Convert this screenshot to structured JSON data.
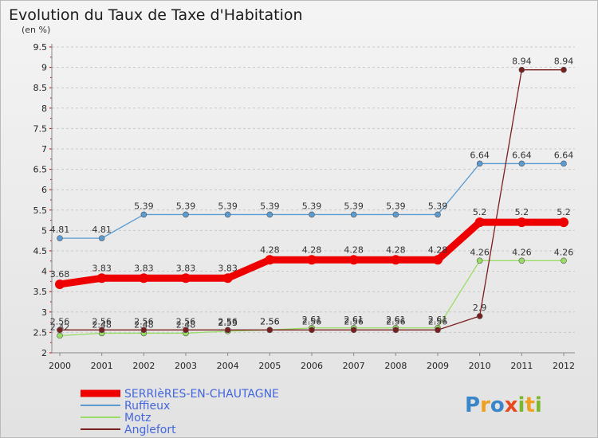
{
  "chart_data": {
    "type": "line",
    "title": "Evolution du Taux de Taxe d'Habitation",
    "subtitle": "(en %)",
    "x": [
      "2000",
      "2001",
      "2002",
      "2003",
      "2004",
      "2005",
      "2006",
      "2007",
      "2008",
      "2009",
      "2010",
      "2011",
      "2012"
    ],
    "ylim": [
      2,
      9.5
    ],
    "yticks": [
      "2",
      "2.5",
      "3",
      "3.5",
      "4",
      "4.5",
      "5",
      "5.5",
      "6",
      "6.5",
      "7",
      "7.5",
      "8",
      "8.5",
      "9",
      "9.5"
    ],
    "grid": "horizontal-dashed",
    "legend_position": "bottom-left",
    "series": [
      {
        "name": "SERRIèRES-EN-CHAUTAGNE",
        "color": "#ee0000",
        "values": [
          3.68,
          3.83,
          3.83,
          3.83,
          3.83,
          4.28,
          4.28,
          4.28,
          4.28,
          4.28,
          5.2,
          5.2,
          5.2
        ],
        "labels": [
          "3.68",
          "3.83",
          "3.83",
          "3.83",
          "3.83",
          "4.28",
          "4.28",
          "4.28",
          "4.28",
          "4.28",
          "5.2",
          "5.2",
          "5.2"
        ]
      },
      {
        "name": "Ruffieux",
        "color": "#5b9bd0",
        "values": [
          4.81,
          4.81,
          5.39,
          5.39,
          5.39,
          5.39,
          5.39,
          5.39,
          5.39,
          5.39,
          6.64,
          6.64,
          6.64
        ],
        "labels": [
          "4.81",
          "4.81",
          "5.39",
          "5.39",
          "5.39",
          "5.39",
          "5.39",
          "5.39",
          "5.39",
          "5.39",
          "6.64",
          "6.64",
          "6.64"
        ]
      },
      {
        "name": "Motz",
        "color": "#99dd66",
        "values": [
          2.42,
          2.48,
          2.48,
          2.48,
          2.53,
          2.56,
          2.61,
          2.61,
          2.61,
          2.61,
          4.26,
          4.26,
          4.26
        ],
        "labels": [
          "2.42",
          "2.48",
          "2.48",
          "2.48",
          "2.53",
          "2.56",
          "2.61",
          "2.61",
          "2.61",
          "2.61",
          "4.26",
          "4.26",
          "4.26"
        ]
      },
      {
        "name": "Anglefort",
        "color": "#7a1f1f",
        "values": [
          2.56,
          2.56,
          2.56,
          2.56,
          2.56,
          2.56,
          2.56,
          2.56,
          2.56,
          2.56,
          2.9,
          8.94,
          8.94
        ],
        "labels": [
          "2.56",
          "2.56",
          "2.56",
          "2.56",
          "2.56",
          "2.56",
          "2.56",
          "2.56",
          "2.56",
          "2.56",
          "2.9",
          "8.94",
          "8.94"
        ]
      }
    ]
  },
  "logo": {
    "text": "Proxiti",
    "letters": [
      "P",
      "r",
      "o",
      "x",
      "i",
      "t",
      "i"
    ],
    "colors": [
      "#3a86c8",
      "#f0a020",
      "#3a86c8",
      "#e84820",
      "#7ab830",
      "#f0a020",
      "#7ab830"
    ]
  }
}
